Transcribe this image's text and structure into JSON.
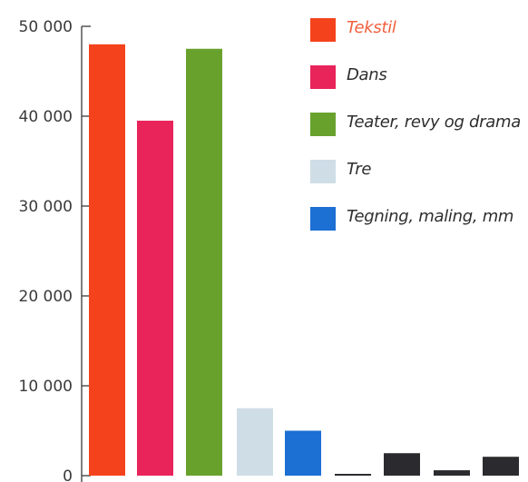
{
  "chart_data": {
    "type": "bar",
    "title": "",
    "xlabel": "",
    "ylabel": "",
    "ylim": [
      0,
      50000
    ],
    "yticks": [
      {
        "value": 0,
        "label": "0"
      },
      {
        "value": 10000,
        "label": "10 000"
      },
      {
        "value": 20000,
        "label": "20 000"
      },
      {
        "value": 30000,
        "label": "30 000"
      },
      {
        "value": 40000,
        "label": "40 000"
      },
      {
        "value": 50000,
        "label": "50 000"
      }
    ],
    "bars": [
      {
        "value": 48000,
        "color": "#f4431c"
      },
      {
        "value": 39500,
        "color": "#e8245a"
      },
      {
        "value": 47500,
        "color": "#68a22d"
      },
      {
        "value": 7500,
        "color": "#cfdde6"
      },
      {
        "value": 5000,
        "color": "#1c6fd3"
      },
      {
        "value": 200,
        "color": "#2b2b2f"
      },
      {
        "value": 2500,
        "color": "#2b2b2f"
      },
      {
        "value": 600,
        "color": "#2b2b2f"
      },
      {
        "value": 2100,
        "color": "#2b2b2f"
      }
    ],
    "legend": {
      "placement": "top-right",
      "entries": [
        {
          "label": "Tekstil",
          "color": "#f4431c",
          "text_color": "#f0603f"
        },
        {
          "label": "Dans",
          "color": "#e8245a",
          "text_color": "#2e2e2e"
        },
        {
          "label": "Teater, revy og drama",
          "color": "#68a22d",
          "text_color": "#2e2e2e"
        },
        {
          "label": "Tre",
          "color": "#cfdde6",
          "text_color": "#2e2e2e"
        },
        {
          "label": "Tegning, maling, mm",
          "color": "#1c6fd3",
          "text_color": "#2e2e2e"
        }
      ]
    },
    "grid": false
  }
}
